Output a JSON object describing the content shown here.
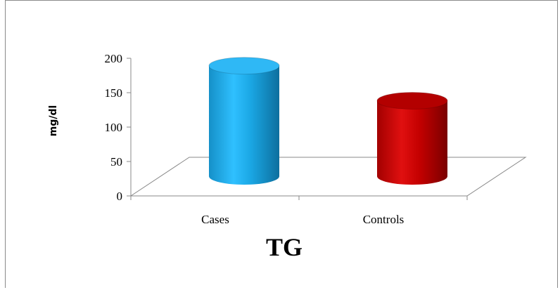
{
  "chart_data": {
    "type": "bar",
    "style": "3d-cylinder",
    "categories": [
      "Cases",
      "Controls"
    ],
    "values": [
      183,
      125
    ],
    "colors": [
      "#1aa6e3",
      "#cc0000"
    ],
    "xlabel": "TG",
    "ylabel": "mg/dl",
    "ylim": [
      0,
      200
    ],
    "yticks": [
      0,
      50,
      100,
      150,
      200
    ],
    "grid": false,
    "legend": "none"
  }
}
